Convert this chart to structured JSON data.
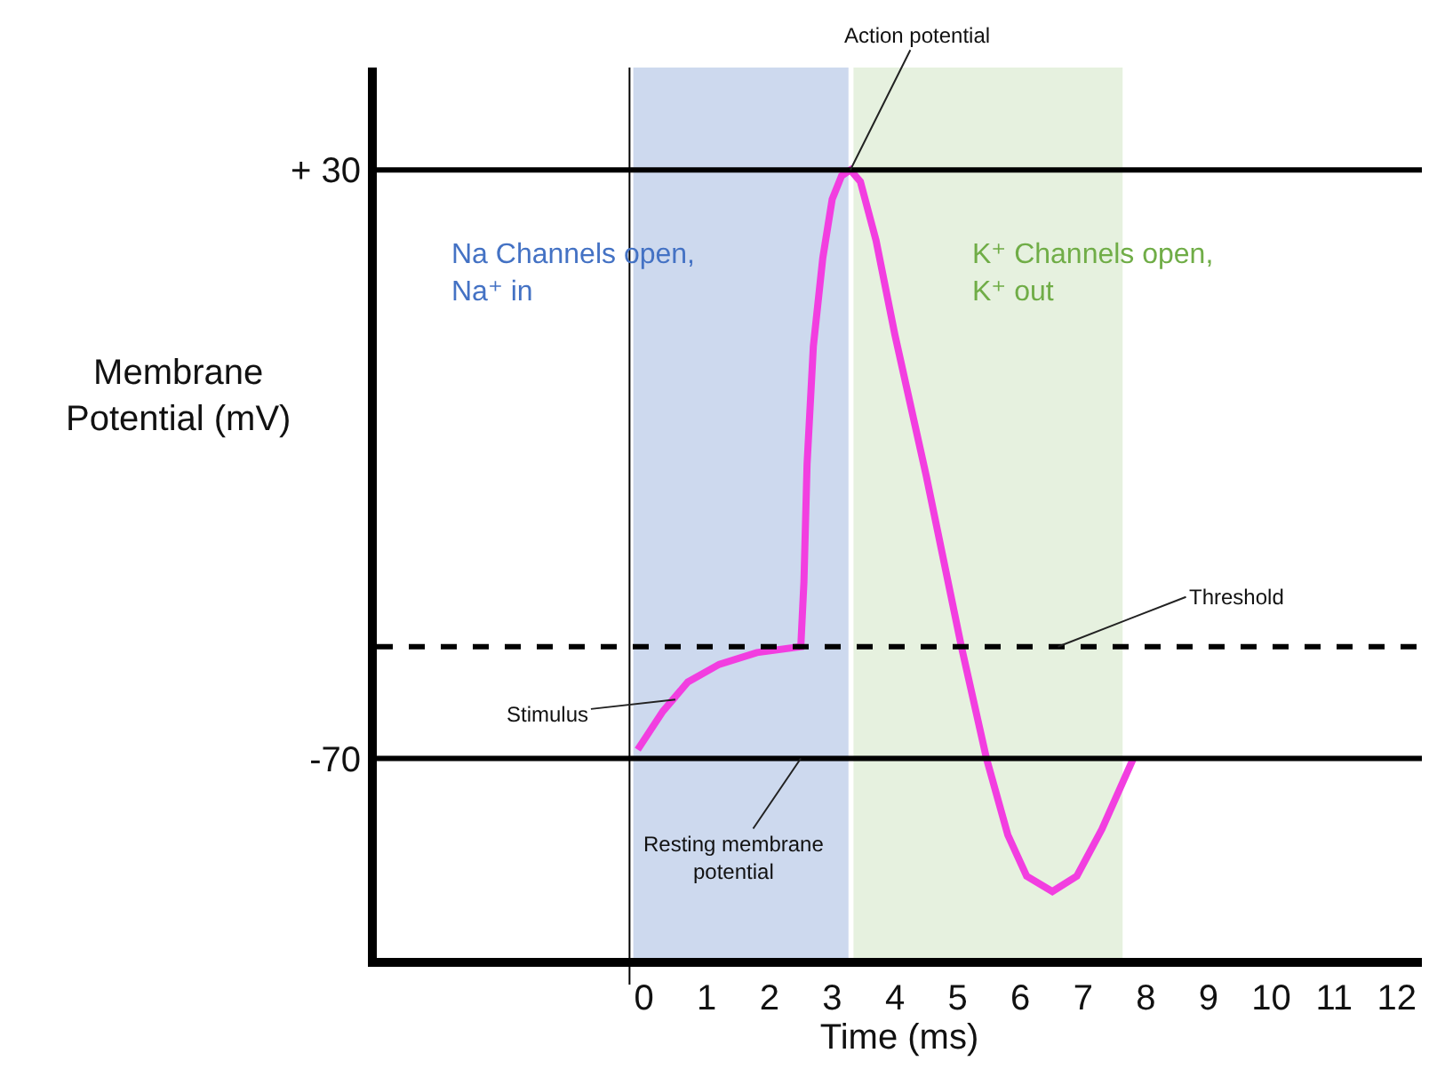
{
  "chart_data": {
    "type": "line",
    "xlabel": "Time (ms)",
    "ylabel": "Membrane\nPotential (mV)",
    "x": [
      -0.1,
      0.3,
      0.7,
      1.2,
      1.8,
      2.5,
      2.55,
      2.6,
      2.7,
      2.85,
      3.0,
      3.15,
      3.29,
      3.45,
      3.7,
      4.0,
      4.5,
      5.06,
      5.46,
      5.8,
      6.1,
      6.51,
      6.9,
      7.3,
      7.8
    ],
    "series": [
      {
        "color": "#f23ee0",
        "values": [
          -68.5,
          -62,
          -57,
          -54,
          -52,
          -51,
          -40,
          -20,
          0,
          15,
          25,
          29,
          30,
          28,
          18,
          2,
          -22,
          -51,
          -70,
          -83,
          -90,
          -92.6,
          -90,
          -82,
          -70
        ]
      }
    ],
    "xlim": [
      -4.4,
      12.4
    ],
    "ylim": [
      -105.4,
      47.4
    ],
    "xticks": [
      0,
      1,
      2,
      3,
      4,
      5,
      6,
      7,
      8,
      9,
      10,
      11,
      12
    ],
    "yticks": [
      {
        "value": 30,
        "label": "+ 30"
      },
      -70
    ],
    "grid": false,
    "marker": "none",
    "line_style": "solid",
    "ref_lines": [
      {
        "axis": "y",
        "value": 30
      },
      {
        "axis": "y",
        "value": -70
      },
      {
        "axis": "y",
        "value": -51,
        "label": "Threshold",
        "line_style": "dashed"
      },
      {
        "axis": "x",
        "value": -0.23
      }
    ],
    "bands": [
      {
        "axis": "x",
        "from": -0.17,
        "to": 3.26,
        "label": "Na Channels open,\nNa⁺ in",
        "color": "#cdd9ee"
      },
      {
        "axis": "x",
        "from": 3.34,
        "to": 7.63,
        "label": "K⁺ Channels open,\nK⁺ out",
        "color": "#e6f1df"
      }
    ],
    "annotations": [
      {
        "text": "Action potential",
        "x": 3.29,
        "y": 30
      },
      {
        "text": "Stimulus",
        "x": 0.5,
        "y": -60
      },
      {
        "text": "Resting membrane\npotential",
        "x": 2.5,
        "y": -70
      }
    ]
  }
}
